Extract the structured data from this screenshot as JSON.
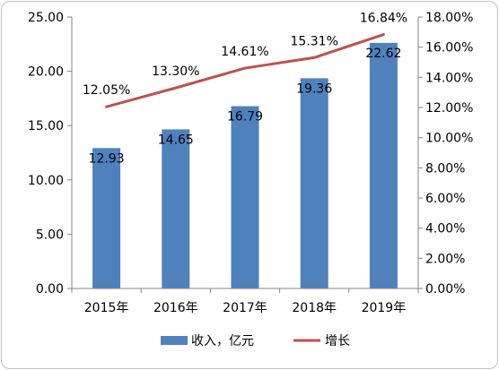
{
  "chart_data": {
    "type": "bar",
    "categories": [
      "2015年",
      "2016年",
      "2017年",
      "2018年",
      "2019年"
    ],
    "series": [
      {
        "name": "收入，亿元",
        "type": "bar",
        "axis": "left",
        "color": "#4f81bd",
        "values": [
          12.93,
          14.65,
          16.79,
          19.36,
          22.62
        ],
        "labels": [
          "12.93",
          "14.65",
          "16.79",
          "19.36",
          "22.62"
        ]
      },
      {
        "name": "增长",
        "type": "line",
        "axis": "right",
        "color": "#c0504d",
        "values": [
          12.05,
          13.3,
          14.61,
          15.31,
          16.84
        ],
        "labels": [
          "12.05%",
          "13.30%",
          "14.61%",
          "15.31%",
          "16.84%"
        ]
      }
    ],
    "left_axis": {
      "ylim": [
        0,
        25
      ],
      "ticks": [
        "0.00",
        "5.00",
        "10.00",
        "15.00",
        "20.00",
        "25.00"
      ]
    },
    "right_axis": {
      "ylim": [
        0,
        18
      ],
      "unit": "%",
      "ticks": [
        "0.00%",
        "2.00%",
        "4.00%",
        "6.00%",
        "8.00%",
        "10.00%",
        "12.00%",
        "14.00%",
        "16.00%",
        "18.00%"
      ]
    },
    "grid": false,
    "legend": "bottom"
  }
}
